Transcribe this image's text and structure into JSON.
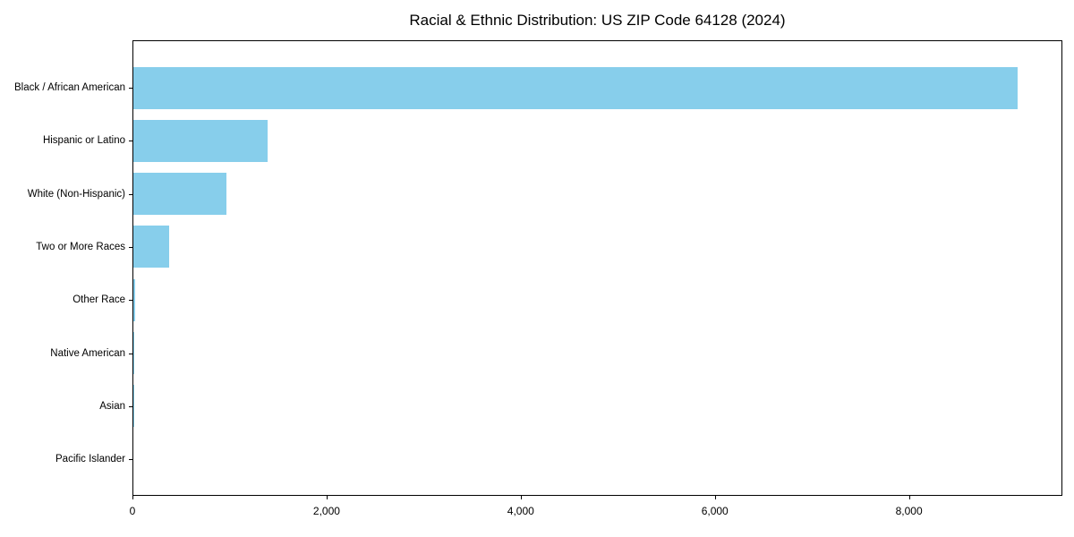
{
  "chart_data": {
    "type": "bar",
    "orientation": "horizontal",
    "title": "Racial & Ethnic Distribution: US ZIP Code 64128 (2024)",
    "categories": [
      "Black / African American",
      "Hispanic or Latino",
      "White (Non-Hispanic)",
      "Two or More Races",
      "Other Race",
      "Native American",
      "Asian",
      "Pacific Islander"
    ],
    "values": [
      9120,
      1390,
      970,
      380,
      25,
      12,
      10,
      4
    ],
    "xlabel": "",
    "ylabel": "",
    "xlim": [
      0,
      9580
    ],
    "x_ticks": [
      0,
      2000,
      4000,
      6000,
      8000
    ],
    "x_tick_labels": [
      "0",
      "2,000",
      "4,000",
      "6,000",
      "8,000"
    ],
    "bar_color": "#87CEEB",
    "axis_color": "#000000",
    "text_color": "#000000",
    "background_color": "#FFFFFF",
    "grid": false,
    "legend": "none"
  }
}
